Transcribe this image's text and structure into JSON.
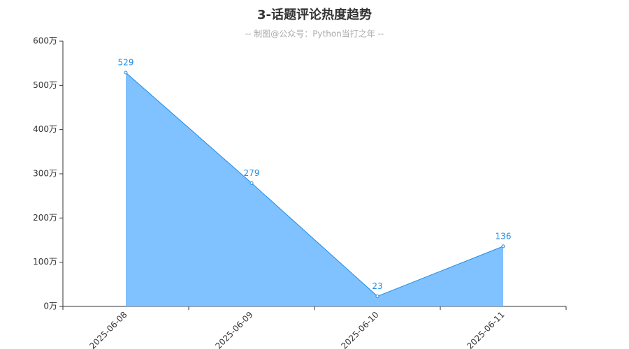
{
  "chart_data": {
    "type": "area",
    "title": "3-话题评论热度趋势",
    "subtitle": "-- 制图@公众号：Python当打之年 --",
    "categories": [
      "2025-06-08",
      "2025-06-09",
      "2025-06-10",
      "2025-06-11"
    ],
    "values": [
      529,
      279,
      23,
      136
    ],
    "color": "#1f8ce6",
    "area_color": "#80c1ff",
    "ylim": [
      0,
      600
    ],
    "yticks": [
      {
        "value": 0,
        "label": "0万"
      },
      {
        "value": 100,
        "label": "100万"
      },
      {
        "value": 200,
        "label": "200万"
      },
      {
        "value": 300,
        "label": "300万"
      },
      {
        "value": 400,
        "label": "400万"
      },
      {
        "value": 500,
        "label": "500万"
      },
      {
        "value": 600,
        "label": "600万"
      }
    ]
  }
}
